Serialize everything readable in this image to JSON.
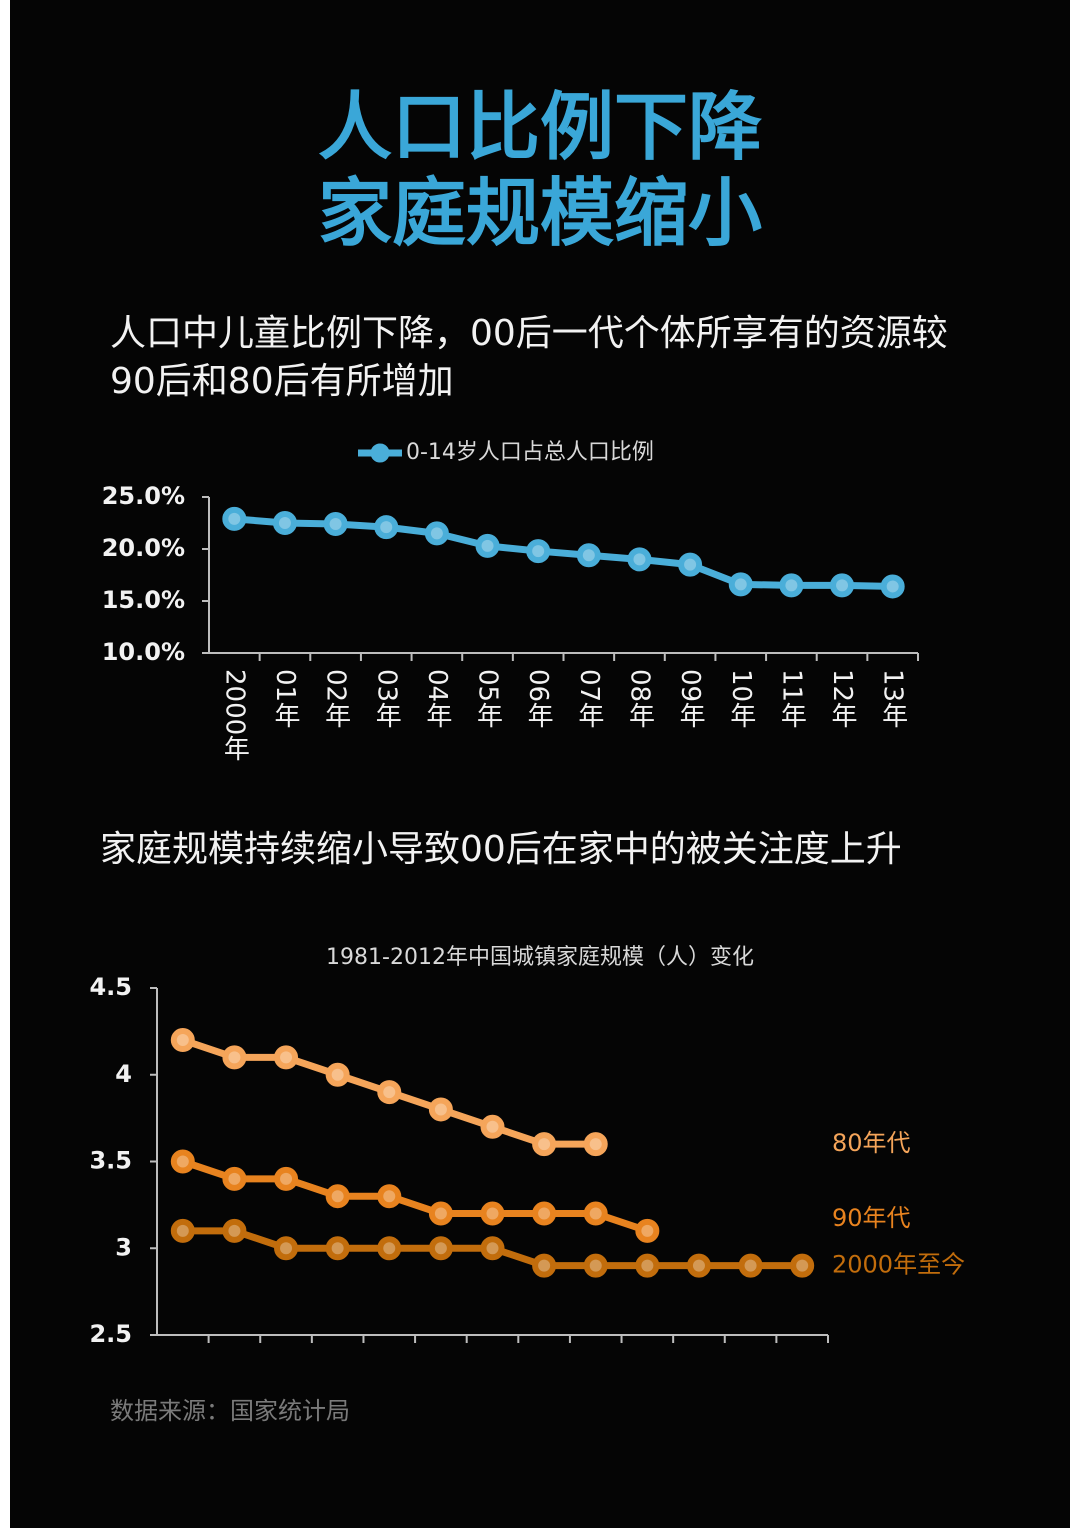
{
  "header": {
    "title": [
      "人口比例下降",
      "家庭规模缩小"
    ]
  },
  "chart_data": [
    {
      "type": "line",
      "heading": "人口中儿童比例下降，00后一代个体所享有的资源较90后和80后有所增加",
      "categories": [
        "2000年",
        "01年",
        "02年",
        "03年",
        "04年",
        "05年",
        "06年",
        "07年",
        "08年",
        "09年",
        "10年",
        "11年",
        "12年",
        "13年"
      ],
      "series": [
        {
          "name": "0-14岁人口占总人口比例",
          "color": "#4aaed9",
          "values": [
            22.9,
            22.5,
            22.4,
            22.1,
            21.5,
            20.3,
            19.8,
            19.4,
            19.0,
            18.5,
            16.6,
            16.5,
            16.5,
            16.4
          ]
        }
      ],
      "ylim": [
        10,
        25
      ],
      "yticks": [
        {
          "value": 10,
          "label": "10.0%"
        },
        {
          "value": 15,
          "label": "15.0%"
        },
        {
          "value": 20,
          "label": "20.0%"
        },
        {
          "value": 25,
          "label": "25.0%"
        }
      ],
      "legend": "top",
      "grid": false
    },
    {
      "type": "line",
      "heading": "家庭规模持续缩小导致00后在家中的被关注度上升",
      "title": "1981-2012年中国城镇家庭规模（人）变化",
      "categories": [
        null,
        null,
        null,
        null,
        null,
        null,
        null,
        null,
        null,
        null,
        null,
        null,
        null
      ],
      "series": [
        {
          "name": "80年代",
          "color": "#f5a55a",
          "values": [
            4.2,
            4.1,
            4.1,
            4.0,
            3.9,
            3.8,
            3.7,
            3.6,
            3.6,
            null,
            null,
            null,
            null
          ]
        },
        {
          "name": "90年代",
          "color": "#e8831f",
          "values": [
            3.5,
            3.4,
            3.4,
            3.3,
            3.3,
            3.2,
            3.2,
            3.2,
            3.2,
            3.1,
            null,
            null,
            null
          ]
        },
        {
          "name": "2000年至今",
          "color": "#c26d0c",
          "values": [
            3.1,
            3.1,
            3.0,
            3.0,
            3.0,
            3.0,
            3.0,
            2.9,
            2.9,
            2.9,
            2.9,
            2.9,
            2.9
          ]
        }
      ],
      "ylim": [
        2.5,
        4.5
      ],
      "yticks": [
        2.5,
        3,
        3.5,
        4,
        4.5
      ],
      "legend": "right",
      "grid": false
    }
  ],
  "footer": {
    "source": "数据来源：国家统计局"
  }
}
